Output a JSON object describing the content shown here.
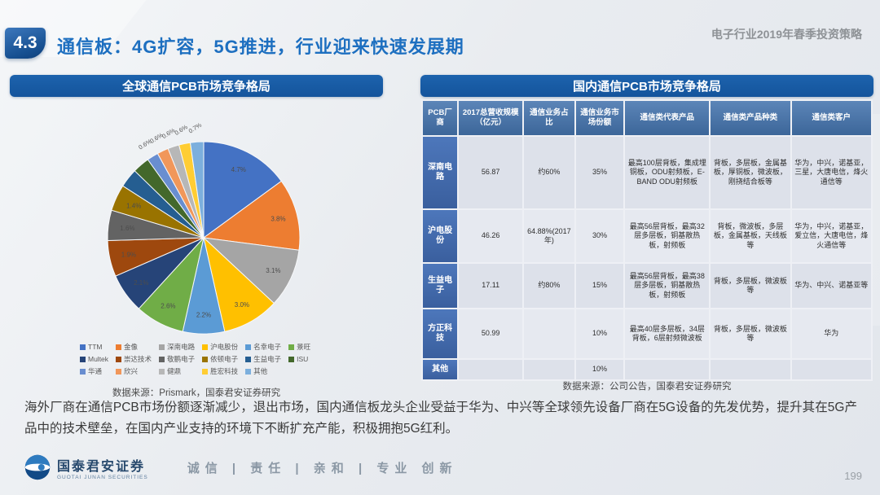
{
  "slide": {
    "section_number": "4.3",
    "title": "通信板：4G扩容，5G推进，行业迎来快速发展期",
    "report_title": "电子行业2019年春季投资策略",
    "page_number": "199"
  },
  "left_panel": {
    "header": "全球通信PCB市场竞争格局",
    "source": "数据来源：Prismark，国泰君安证券研究"
  },
  "chart_data": {
    "type": "pie",
    "title": "全球通信PCB市场竞争格局",
    "categories": [
      "TTM",
      "金像",
      "深南电路",
      "沪电股份",
      "名幸电子",
      "景旺",
      "Multek",
      "崇达技术",
      "敬鹏电子",
      "依顿电子",
      "生益电子",
      "ISU",
      "华通",
      "欣兴",
      "健鼎",
      "胜宏科技",
      "其他"
    ],
    "values": [
      4.7,
      3.8,
      3.1,
      3.0,
      2.2,
      2.6,
      2.1,
      1.9,
      1.6,
      1.4,
      1.0,
      0.9,
      0.6,
      0.6,
      0.6,
      0.6,
      0.7
    ],
    "labels_shown": [
      "4.7%",
      "3.8%",
      "3.1%",
      "3.0%",
      "2.2%",
      "2.6%",
      "2.1%",
      "1.9%",
      "1.6%",
      "1.4%",
      "",
      "",
      "0.6%",
      "0.6%",
      "0.6%",
      "0.6%",
      "0.7%"
    ],
    "colors": [
      "#4472C4",
      "#ED7D31",
      "#A5A5A5",
      "#FFC000",
      "#5B9BD5",
      "#70AD47",
      "#264478",
      "#9E480E",
      "#636363",
      "#997300",
      "#255E91",
      "#43682B",
      "#698ED0",
      "#F1975A",
      "#B7B7B7",
      "#FFCD33",
      "#7CAFDD"
    ],
    "unit": "%",
    "legend_position": "bottom",
    "source": "数据来源：Prismark，国泰君安证券研究"
  },
  "right_panel": {
    "header": "国内通信PCB市场竞争格局",
    "source": "数据来源：公司公告，国泰君安证券研究",
    "table": {
      "columns": [
        "PCB厂商",
        "2017总营收规模（亿元）",
        "通信业务占比",
        "通信业务市场份额",
        "通信类代表产品",
        "通信类产品种类",
        "通信类客户"
      ],
      "rows": [
        [
          "深南电路",
          "56.87",
          "约60%",
          "35%",
          "最高100层背板，集成埋铜板，ODU射频板，E-BAND ODU射频板",
          "背板，多层板，金属基板，厚铜板，微波板，刚挠结合板等",
          "华为，中兴，诺基亚，三星，大唐电信，烽火通信等"
        ],
        [
          "沪电股份",
          "46.26",
          "64.88%(2017年)",
          "30%",
          "最高56层背板，最高32层多层板，铜基散热板，射频板",
          "背板，微波板，多层板，金属基板，天线板等",
          "华为，中兴，诺基亚，爱立信，大唐电信，烽火通信等"
        ],
        [
          "生益电子",
          "17.11",
          "约80%",
          "15%",
          "最高56层背板，最高38层多层板，铜基散热板，射频板",
          "背板，多层板，微波板等",
          "华为、中兴、诺基亚等"
        ],
        [
          "方正科技",
          "50.99",
          "",
          "10%",
          "最高40层多层板，34层背板，6层射频微波板",
          "背板，多层板，微波板等",
          "华为"
        ],
        [
          "其他",
          "",
          "",
          "10%",
          "",
          "",
          ""
        ]
      ]
    }
  },
  "commentary": "海外厂商在通信PCB市场份额逐渐减少，退出市场，国内通信板龙头企业受益于华为、中兴等全球领先设备厂商在5G设备的先发优势，提升其在5G产品中的技术壁垒，在国内产业支持的环境下不断扩充产能，积极拥抱5G红利。",
  "footer": {
    "company": "国泰君安证券",
    "company_en": "GUOTAI JUNAN SECURITIES",
    "slogan": "诚信 | 责任 | 亲和 | 专业  创新"
  },
  "colors": {
    "accent_blue": "#14549c",
    "title_blue": "#1d6fc0",
    "table_header": "#3c6699",
    "vendor_cell": "#3a5f9e"
  }
}
